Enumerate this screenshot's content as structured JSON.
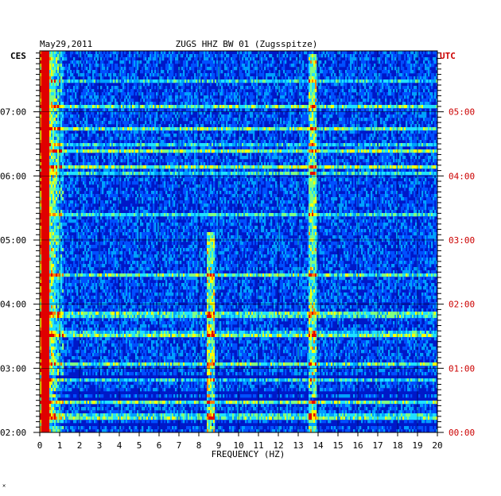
{
  "chart_data": {
    "type": "heatmap",
    "title_left": "May29,2011",
    "title_center": "ZUGS HHZ BW 01 (Zugsspitze)",
    "left_zone_label": "CES",
    "right_zone_label": "UTC",
    "xlabel": "FREQUENCY (HZ)",
    "x_ticks": [
      "0",
      "1",
      "2",
      "3",
      "4",
      "5",
      "6",
      "7",
      "8",
      "9",
      "10",
      "11",
      "12",
      "13",
      "14",
      "15",
      "16",
      "17",
      "18",
      "19",
      "20"
    ],
    "xlim": [
      0,
      20
    ],
    "y_ticks_left": [
      "07:00",
      "06:00",
      "05:00",
      "04:00",
      "03:00",
      "02:00"
    ],
    "y_ticks_right": [
      "05:00",
      "04:00",
      "03:00",
      "02:00",
      "01:00",
      "00:00"
    ],
    "y_tick_hours_left": [
      7,
      6,
      5,
      4,
      3,
      2
    ],
    "time_range_local_hours": [
      2.0,
      7.95
    ],
    "colormap": [
      "#000080",
      "#0000b8",
      "#0016e8",
      "#0050ff",
      "#00a0ff",
      "#20e0ff",
      "#80ff80",
      "#ffff00",
      "#ff8000",
      "#e00000"
    ],
    "band_features": [
      {
        "freq_hz": 8.6,
        "note_hours": [
          2.0,
          5.1
        ],
        "strength": 0.45
      },
      {
        "freq_hz": 13.7,
        "note_hours": [
          2.0,
          7.9
        ],
        "strength": 0.4
      },
      {
        "freq_hz": 0.3,
        "note_hours": [
          2.0,
          7.95
        ],
        "strength": 0.7
      }
    ],
    "grid": true,
    "colors": {
      "axis": "#000000",
      "left_labels": "#000000",
      "right_labels": "#cc0000",
      "grid": "#000000"
    }
  }
}
